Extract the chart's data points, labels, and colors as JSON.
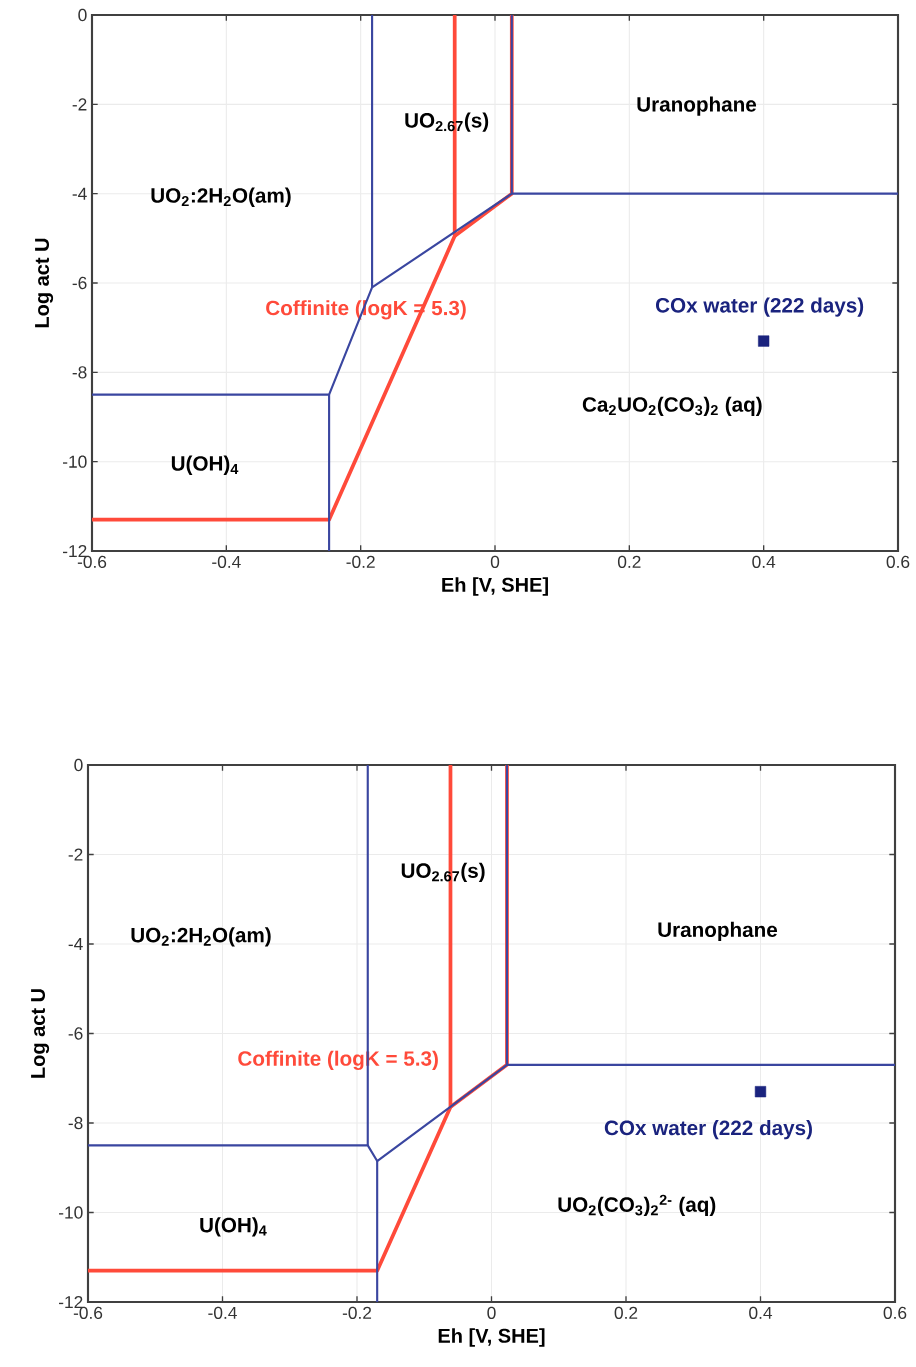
{
  "chart_data": [
    {
      "type": "line",
      "xlabel": "Eh [V, SHE]",
      "ylabel": "Log act U",
      "xlim": [
        -0.6,
        0.6
      ],
      "ylim": [
        -12,
        0
      ],
      "xticks": [
        -0.6,
        -0.4,
        -0.2,
        0,
        0.2,
        0.4,
        0.6
      ],
      "yticks": [
        -12,
        -10,
        -8,
        -6,
        -4,
        -2,
        0
      ],
      "grid": true,
      "line_style": "solid",
      "series": [
        {
          "name": "Coffinite (logK = 5.3)",
          "color": "#ff4a3a",
          "x": [
            -0.6,
            -0.247,
            -0.06,
            -0.06
          ],
          "values": [
            -11.3,
            -11.3,
            -4.95,
            0
          ]
        },
        {
          "color": "#ff4a3a",
          "x": [
            -0.06,
            0.025,
            0.025
          ],
          "values": [
            -4.95,
            -4,
            0
          ]
        },
        {
          "color": "#3a46a0",
          "x": [
            -0.6,
            -0.247,
            -0.183,
            0.025,
            0.6
          ],
          "values": [
            -8.5,
            -8.5,
            -6.1,
            -4,
            -4
          ]
        },
        {
          "color": "#3a46a0",
          "x": [
            -0.183,
            -0.183
          ],
          "values": [
            -6.1,
            0
          ]
        },
        {
          "color": "#3a46a0",
          "x": [
            0.025,
            0.025
          ],
          "values": [
            -4,
            0
          ]
        },
        {
          "color": "#3a46a0",
          "x": [
            -0.247,
            -0.247
          ],
          "values": [
            -8.5,
            -12
          ]
        },
        {
          "type": "scatter",
          "name": "COx water (222 days)",
          "color": "#1a237e",
          "marker": "square",
          "x": [
            0.4
          ],
          "values": [
            -7.3
          ]
        }
      ],
      "annotations": [
        "Uranophane",
        "UO$_{2.67}$(s)",
        "UO$_{2}$:2H$_{2}$O(am)",
        "Ca$_{2}$UO$_{2}$(CO$_{3}$)$_{2}$ (aq)",
        "U(OH)$_{4}$"
      ]
    },
    {
      "type": "line",
      "xlabel": "Eh [V, SHE]",
      "ylabel": "Log act U",
      "xlim": [
        -0.6,
        0.6
      ],
      "ylim": [
        -12,
        0
      ],
      "xticks": [
        -0.6,
        -0.4,
        -0.2,
        0,
        0.2,
        0.4,
        0.6
      ],
      "yticks": [
        -12,
        -10,
        -8,
        -6,
        -4,
        -2,
        0
      ],
      "grid": true,
      "line_style": "solid",
      "series": [
        {
          "name": "Coffinite (logK = 5.3)",
          "color": "#ff4a3a",
          "x": [
            -0.6,
            -0.17,
            -0.061,
            -0.061
          ],
          "values": [
            -11.3,
            -11.3,
            -7.64,
            0
          ]
        },
        {
          "color": "#ff4a3a",
          "x": [
            -0.061,
            0.023,
            0.023
          ],
          "values": [
            -7.64,
            -6.7,
            0
          ]
        },
        {
          "color": "#3a46a0",
          "x": [
            -0.6,
            -0.184,
            -0.17,
            0.023,
            0.6
          ],
          "values": [
            -8.5,
            -8.5,
            -8.85,
            -6.7,
            -6.7
          ]
        },
        {
          "color": "#3a46a0",
          "x": [
            -0.184,
            -0.184
          ],
          "values": [
            -8.5,
            0
          ]
        },
        {
          "color": "#3a46a0",
          "x": [
            -0.17,
            -0.17
          ],
          "values": [
            -8.85,
            -12
          ]
        },
        {
          "color": "#3a46a0",
          "x": [
            0.023,
            0.023
          ],
          "values": [
            -6.7,
            0
          ]
        },
        {
          "type": "scatter",
          "name": "COx water (222 days)",
          "color": "#1a237e",
          "marker": "square",
          "x": [
            0.4
          ],
          "values": [
            -7.3
          ]
        }
      ],
      "annotations": [
        "Uranophane",
        "UO$_{2.67}$(s)",
        "UO$_{2}$:2H$_{2}$O(am)",
        "UO$_{2}$(CO$_{3}$)$_{2}$$^{2-}$ (aq)",
        "U(OH)$_{4}$"
      ]
    }
  ]
}
